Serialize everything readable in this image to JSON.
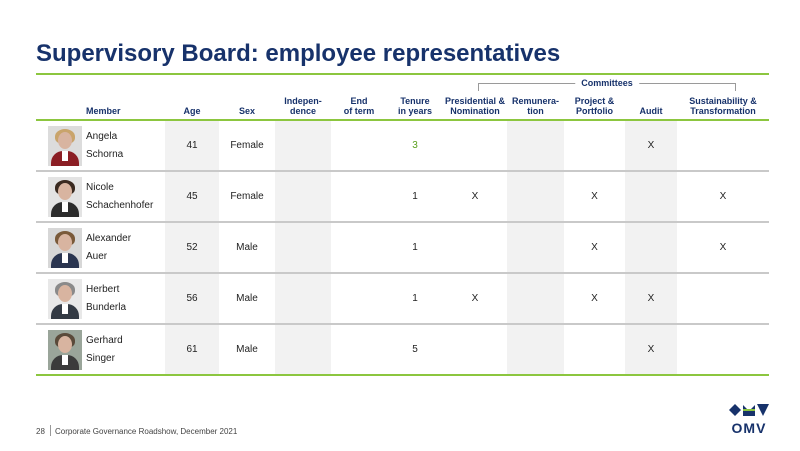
{
  "title": "Supervisory Board: employee representatives",
  "committees_label": "Committees",
  "headers": {
    "member": "Member",
    "age": "Age",
    "sex": "Sex",
    "independence": "Indepen-\ndence",
    "end_of_term": "End\nof term",
    "tenure": "Tenure\nin years",
    "presidential": "Presidential &\nNomination",
    "remuneration": "Remunera-\ntion",
    "project": "Project &\nPortfolio",
    "audit": "Audit",
    "sustainability": "Sustainability &\nTransformation"
  },
  "rows": [
    {
      "first": "Angela",
      "last": "Schorna",
      "age": "41",
      "sex": "Female",
      "independence": "",
      "end_of_term": "",
      "tenure": "3",
      "presidential": "",
      "remuneration": "",
      "project": "",
      "audit": "X",
      "sustainability": ""
    },
    {
      "first": "Nicole",
      "last": "Schachenhofer",
      "age": "45",
      "sex": "Female",
      "independence": "",
      "end_of_term": "",
      "tenure": "1",
      "presidential": "X",
      "remuneration": "",
      "project": "X",
      "audit": "",
      "sustainability": "X"
    },
    {
      "first": "Alexander",
      "last": "Auer",
      "age": "52",
      "sex": "Male",
      "independence": "",
      "end_of_term": "",
      "tenure": "1",
      "presidential": "",
      "remuneration": "",
      "project": "X",
      "audit": "",
      "sustainability": "X"
    },
    {
      "first": "Herbert",
      "last": "Bunderla",
      "age": "56",
      "sex": "Male",
      "independence": "",
      "end_of_term": "",
      "tenure": "1",
      "presidential": "X",
      "remuneration": "",
      "project": "X",
      "audit": "X",
      "sustainability": ""
    },
    {
      "first": "Gerhard",
      "last": "Singer",
      "age": "61",
      "sex": "Male",
      "independence": "",
      "end_of_term": "",
      "tenure": "5",
      "presidential": "",
      "remuneration": "",
      "project": "",
      "audit": "X",
      "sustainability": ""
    }
  ],
  "footer": {
    "page_number": "28",
    "text": "Corporate Governance Roadshow, December 2021"
  },
  "logo_text": "OMV",
  "colors": {
    "brand_navy": "#17326b",
    "accent_green": "#8cc63f",
    "highlight_green": "#5aa01e"
  }
}
